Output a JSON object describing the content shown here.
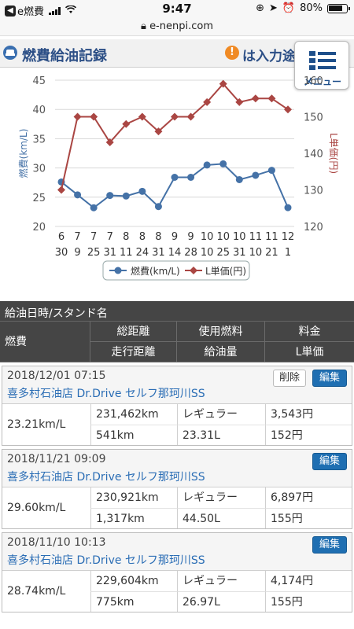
{
  "status_bar": {
    "back_app": "e燃費",
    "time": "9:47",
    "battery": "80%",
    "battery_fraction": 0.8
  },
  "url": "e-nenpi.com",
  "header": {
    "title": "燃費給油記録",
    "info_glyph": "!",
    "hint": "は入力途"
  },
  "menu": {
    "label": "メニュー"
  },
  "chart_data": {
    "type": "line",
    "categories": [
      "6/30",
      "7/9",
      "7/25",
      "7/31",
      "8/11",
      "8/24",
      "8/31",
      "9/14",
      "9/28",
      "10/10",
      "10/25",
      "10/31",
      "11/10",
      "11/21",
      "12/1"
    ],
    "x_tick_top": [
      "6",
      "7",
      "7",
      "7",
      "8",
      "8",
      "8",
      "9",
      "9",
      "10",
      "10",
      "10",
      "11",
      "11",
      "12"
    ],
    "x_tick_bottom": [
      "30",
      "9",
      "25",
      "31",
      "11",
      "24",
      "31",
      "14",
      "28",
      "10",
      "25",
      "31",
      "10",
      "21",
      "1"
    ],
    "series": [
      {
        "name": "燃費(km/L)",
        "axis": "left",
        "color": "#4572a7",
        "marker": "circle",
        "values": [
          27.6,
          25.4,
          23.2,
          25.3,
          25.2,
          26.0,
          23.4,
          28.4,
          28.4,
          30.5,
          30.7,
          28.0,
          28.74,
          29.6,
          23.21
        ]
      },
      {
        "name": "L単価(円)",
        "axis": "right",
        "color": "#aa4643",
        "marker": "diamond",
        "values": [
          130,
          150,
          150,
          143,
          148,
          150,
          146,
          150,
          150,
          154,
          159,
          154,
          155,
          155,
          152
        ]
      }
    ],
    "y_left": {
      "label": "燃費(km/L)",
      "range": [
        20,
        45
      ],
      "ticks": [
        20,
        25,
        30,
        35,
        40,
        45
      ]
    },
    "y_right": {
      "label": "L単価(円)",
      "range": [
        120,
        160
      ],
      "ticks": [
        120,
        130,
        140,
        150,
        160
      ]
    },
    "grid": true,
    "legend_position": "bottom"
  },
  "table": {
    "header_top": "給油日時/スタンド名",
    "col_efficiency": "燃費",
    "col_total_distance": "総距離",
    "col_fuel_type": "使用燃料",
    "col_charge": "料金",
    "col_trip_distance": "走行距離",
    "col_fuel_amount": "給油量",
    "col_unit_price": "L単価"
  },
  "records": [
    {
      "datetime": "2018/12/01 07:15",
      "station": "喜多村石油店 Dr.Drive セルフ那珂川SS",
      "delete_label": "削除",
      "edit_label": "編集",
      "efficiency": "23.21km/L",
      "total_distance": "231,462km",
      "fuel_type": "レギュラー",
      "charge": "3,543円",
      "trip_distance": "541km",
      "fuel_amount": "23.31L",
      "unit_price": "152円"
    },
    {
      "datetime": "2018/11/21 09:09",
      "station": "喜多村石油店 Dr.Drive セルフ那珂川SS",
      "edit_label": "編集",
      "efficiency": "29.60km/L",
      "total_distance": "230,921km",
      "fuel_type": "レギュラー",
      "charge": "6,897円",
      "trip_distance": "1,317km",
      "fuel_amount": "44.50L",
      "unit_price": "155円"
    },
    {
      "datetime": "2018/11/10 10:13",
      "station": "喜多村石油店 Dr.Drive セルフ那珂川SS",
      "edit_label": "編集",
      "efficiency": "28.74km/L",
      "total_distance": "229,604km",
      "fuel_type": "レギュラー",
      "charge": "4,174円",
      "trip_distance": "775km",
      "fuel_amount": "26.97L",
      "unit_price": "155円"
    }
  ]
}
